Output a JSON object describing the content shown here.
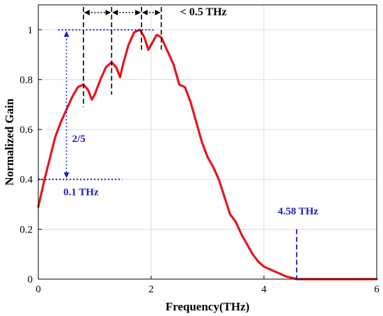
{
  "chart_data": {
    "type": "line",
    "title": "",
    "xlabel": "Frequency(THz)",
    "ylabel": "Normalized Gain",
    "xlim": [
      0,
      6
    ],
    "ylim": [
      0,
      1.1
    ],
    "xticks": [
      "0",
      "2",
      "4",
      "6"
    ],
    "yticks": [
      "0",
      "0.2",
      "0.4",
      "0.6",
      "0.8",
      "1"
    ],
    "grid": true,
    "legend": "none",
    "series": [
      {
        "color": "#e8141c",
        "x": [
          0,
          0.1,
          0.2,
          0.3,
          0.4,
          0.5,
          0.6,
          0.7,
          0.8,
          0.88,
          0.95,
          1.0,
          1.1,
          1.2,
          1.3,
          1.38,
          1.45,
          1.5,
          1.6,
          1.7,
          1.8,
          1.88,
          1.95,
          2.0,
          2.1,
          2.18,
          2.3,
          2.4,
          2.5,
          2.6,
          2.7,
          2.8,
          2.9,
          3.0,
          3.1,
          3.2,
          3.3,
          3.4,
          3.5,
          3.6,
          3.7,
          3.8,
          3.9,
          4.0,
          4.1,
          4.2,
          4.3,
          4.4,
          4.5,
          4.58,
          4.8,
          5.0,
          5.5,
          6.0
        ],
        "y": [
          0.29,
          0.39,
          0.48,
          0.57,
          0.63,
          0.68,
          0.73,
          0.77,
          0.78,
          0.76,
          0.72,
          0.74,
          0.8,
          0.85,
          0.87,
          0.85,
          0.81,
          0.86,
          0.94,
          0.99,
          1.0,
          0.97,
          0.92,
          0.94,
          0.98,
          0.97,
          0.91,
          0.86,
          0.78,
          0.77,
          0.71,
          0.63,
          0.55,
          0.49,
          0.45,
          0.4,
          0.33,
          0.26,
          0.23,
          0.18,
          0.14,
          0.1,
          0.07,
          0.05,
          0.04,
          0.03,
          0.02,
          0.01,
          0.005,
          0.0,
          0.0,
          0.0,
          0.0,
          0.0
        ]
      }
    ],
    "annotations": {
      "ratio_label": "2/5",
      "step_label": "0.1 THz",
      "spacing_label": "< 0.5 THz",
      "cutoff_label": "4.58 THz",
      "cutoff_x": 4.58,
      "peak_markers_x": [
        0.8,
        1.3,
        1.83,
        2.18
      ],
      "top_level_y": 1.0,
      "bottom_level_y": 0.4,
      "arrow_x": 0.5
    }
  }
}
